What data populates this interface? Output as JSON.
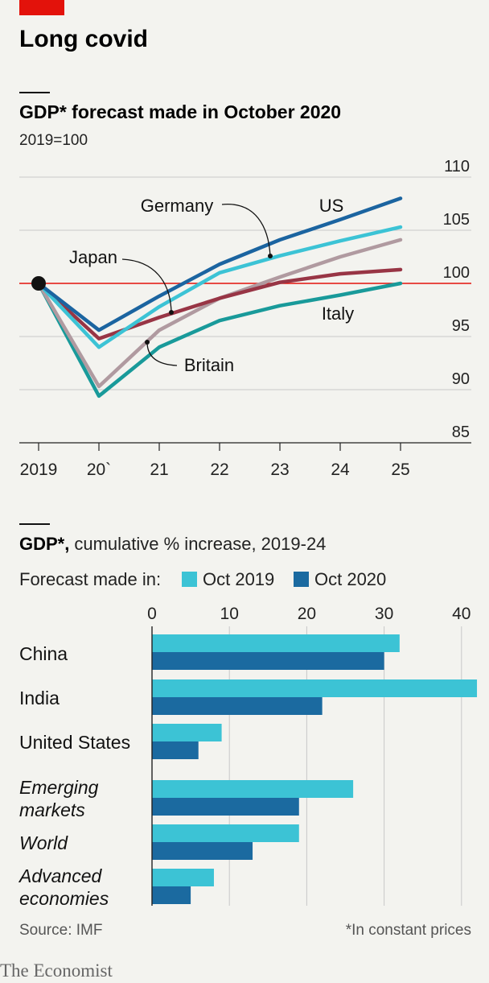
{
  "headline": "Long covid",
  "source": "Source: IMF",
  "footnote": "*In constant prices",
  "publisher": "The Economist",
  "chart_data": [
    {
      "type": "line",
      "title": "GDP* forecast made in October 2020",
      "subtitle": "2019=100",
      "x": [
        2019,
        2020,
        2021,
        2022,
        2023,
        2024,
        2025
      ],
      "x_tick_labels": [
        "2019",
        "20`",
        "21",
        "22",
        "23",
        "24",
        "25"
      ],
      "ylim": [
        85,
        110
      ],
      "y_ticks": [
        110,
        105,
        100,
        95,
        90,
        85
      ],
      "reference_line": 100,
      "grid": true,
      "series": [
        {
          "name": "US",
          "color": "#1b64a0",
          "values": [
            100,
            95.6,
            98.8,
            101.8,
            104.1,
            106.0,
            108.0
          ]
        },
        {
          "name": "Germany",
          "color": "#3cc3d5",
          "values": [
            100,
            94.0,
            97.8,
            101.0,
            102.6,
            104.0,
            105.3
          ]
        },
        {
          "name": "Britain",
          "color": "#b09aa0",
          "values": [
            100,
            90.3,
            95.6,
            98.6,
            100.6,
            102.5,
            104.1
          ]
        },
        {
          "name": "Japan",
          "color": "#983545",
          "values": [
            100,
            94.8,
            96.8,
            98.6,
            100.1,
            100.9,
            101.3
          ]
        },
        {
          "name": "Italy",
          "color": "#199a9a",
          "values": [
            100,
            89.4,
            94.0,
            96.5,
            97.9,
            98.9,
            100.0
          ]
        }
      ],
      "annotations": [
        "Germany",
        "US",
        "Japan",
        "Italy",
        "Britain"
      ]
    },
    {
      "type": "bar",
      "orientation": "horizontal",
      "title": "GDP*,",
      "subtitle": "cumulative % increase, 2019-24",
      "legend_label": "Forecast made in:",
      "categories": [
        "China",
        "India",
        "United States",
        "Emerging markets",
        "World",
        "Advanced economies"
      ],
      "italic_categories": [
        "Emerging markets",
        "World",
        "Advanced economies"
      ],
      "xlim": [
        0,
        42
      ],
      "x_ticks": [
        0,
        10,
        20,
        30,
        40
      ],
      "series": [
        {
          "name": "Oct 2019",
          "color": "#3cc3d5",
          "values": [
            32,
            42,
            9,
            26,
            19,
            8
          ]
        },
        {
          "name": "Oct 2020",
          "color": "#1b6aa0",
          "values": [
            30,
            22,
            6,
            19,
            13,
            5
          ]
        }
      ]
    }
  ]
}
